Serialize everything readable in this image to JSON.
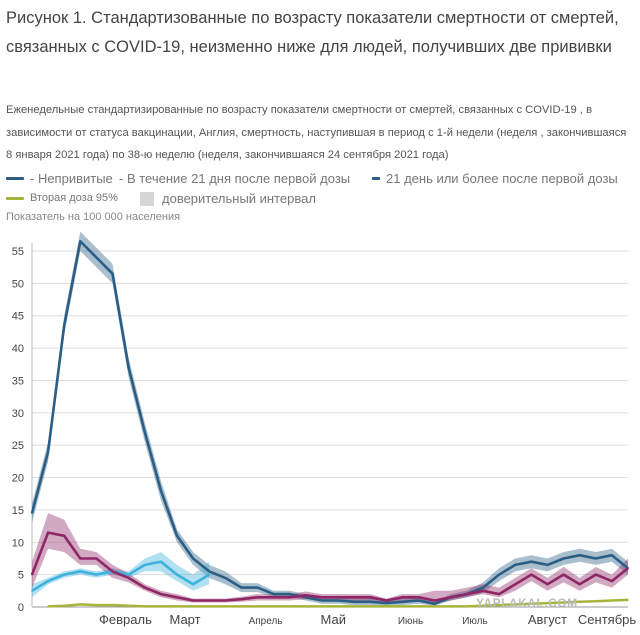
{
  "title": "Рисунок 1. Стандартизованные по возрасту показатели смертности от смертей, связанных с COVID-19, неизменно ниже для людей, получивших две прививки",
  "subtitle": "Еженедельные стандартизированные по возрасту показатели смертности от смертей, связанных с COVID-19 , в зависимости от статуса вакцинации, Англия, смертность, наступившая в период с 1-й недели (неделя , закончившаяся 8 января 2021 года) по 38-ю неделю (неделя, закончившаяся 24 сентября 2021 года)",
  "legend": {
    "unvaccinated": "- Непривитые",
    "within21": "- В течение 21 дня после первой дозы",
    "after21": "21 день или более после первой дозы",
    "second_dose": "Вторая доза 95%",
    "ci": "доверительный интервал"
  },
  "watermark": "YAPLAKAL.COM",
  "colors": {
    "unvaccinated": "#2b5e85",
    "within21": "#3fb1dd",
    "after21": "#8f2766",
    "second_dose": "#a6b53a",
    "ci": "#d6d6d6"
  },
  "chart_data": {
    "type": "line",
    "ylabel": "Показатель на 100 000 населения",
    "ylim": [
      0,
      58
    ],
    "yticks": [
      0,
      5,
      10,
      15,
      20,
      25,
      30,
      35,
      40,
      45,
      50,
      55
    ],
    "weeks": [
      1,
      38
    ],
    "month_labels": [
      {
        "label": "Февраль",
        "week": 6.8,
        "size": "big"
      },
      {
        "label": "Март",
        "week": 10.5,
        "size": "big"
      },
      {
        "label": "Апрель",
        "week": 15.5,
        "size": "small"
      },
      {
        "label": "Май",
        "week": 19.7,
        "size": "big"
      },
      {
        "label": "Июнь",
        "week": 24.5,
        "size": "small"
      },
      {
        "label": "Июль",
        "week": 28.5,
        "size": "small"
      },
      {
        "label": "Август",
        "week": 33.0,
        "size": "big"
      },
      {
        "label": "Сентябрь",
        "week": 36.7,
        "size": "big"
      }
    ],
    "series": [
      {
        "name": "- Непривитые",
        "key": "unvaccinated",
        "x": [
          1,
          2,
          3,
          4,
          5,
          6,
          7,
          8,
          9,
          10,
          11,
          12,
          13,
          14,
          15,
          16,
          17,
          18,
          19,
          20,
          21,
          22,
          23,
          24,
          25,
          26,
          27,
          28,
          29,
          30,
          31,
          32,
          33,
          34,
          35,
          36,
          37,
          38
        ],
        "values": [
          14.5,
          24,
          43.5,
          56.5,
          54,
          51.5,
          37,
          27,
          18,
          11,
          7.5,
          5.5,
          4.5,
          3,
          3,
          2,
          2,
          1.5,
          1,
          1,
          0.8,
          0.8,
          0.6,
          0.8,
          1,
          0.5,
          1.5,
          2,
          3,
          5,
          6.5,
          7,
          6.5,
          7.5,
          8,
          7.5,
          8,
          6
        ],
        "lower": [
          13,
          22.5,
          42,
          55,
          52.5,
          50,
          35.5,
          25.5,
          16.5,
          10,
          6.5,
          4.5,
          3.5,
          2.3,
          2.3,
          1.5,
          1.5,
          1,
          0.5,
          0.5,
          0.3,
          0.3,
          0.2,
          0.3,
          0.5,
          0.2,
          1,
          1.5,
          2.2,
          4,
          5.5,
          6,
          5.5,
          6.5,
          7,
          6.5,
          7,
          5
        ],
        "upper": [
          16,
          25.5,
          45,
          58,
          55.5,
          53,
          38.5,
          28.5,
          19.5,
          12,
          8.5,
          6.5,
          5.5,
          3.7,
          3.7,
          2.5,
          2.5,
          2,
          1.5,
          1.5,
          1.3,
          1.3,
          1,
          1.3,
          1.5,
          0.8,
          2,
          2.5,
          3.8,
          6,
          7.5,
          8,
          7.5,
          8.5,
          9,
          8.5,
          9,
          7
        ]
      },
      {
        "name": "- В течение 21 дня после первой дозы",
        "key": "within21",
        "x": [
          1,
          2,
          3,
          4,
          5,
          6,
          7,
          8,
          9,
          10,
          11,
          12
        ],
        "values": [
          2.5,
          4,
          5,
          5.5,
          5,
          5.5,
          5,
          6.5,
          7,
          5,
          3.5,
          5
        ],
        "lower": [
          1.5,
          3.5,
          4.5,
          5,
          4.5,
          5,
          4.5,
          5.5,
          5.5,
          4,
          2.5,
          3.5
        ],
        "upper": [
          3.5,
          4.5,
          5.5,
          6,
          5.5,
          6,
          5.5,
          7.5,
          8.5,
          6.5,
          5,
          7
        ]
      },
      {
        "name": "21 день или более после первой дозы",
        "key": "after21",
        "x": [
          1,
          2,
          3,
          4,
          5,
          6,
          7,
          8,
          9,
          10,
          11,
          12,
          13,
          14,
          15,
          16,
          17,
          18,
          19,
          20,
          21,
          22,
          23,
          24,
          25,
          26,
          27,
          28,
          29,
          30,
          31,
          32,
          33,
          34,
          35,
          36,
          37,
          38
        ],
        "values": [
          5,
          11.5,
          11,
          7.5,
          7.5,
          5.5,
          4.5,
          3,
          2,
          1.5,
          1,
          1,
          1,
          1.2,
          1.5,
          1.5,
          1.5,
          1.8,
          1.5,
          1.5,
          1.5,
          1.5,
          1,
          1.5,
          1.5,
          1,
          1.5,
          2,
          2.5,
          2,
          3.5,
          5,
          3.5,
          5,
          3.5,
          5,
          4,
          6
        ],
        "lower": [
          3,
          9,
          8.5,
          6.5,
          6.5,
          4.5,
          3.8,
          2.5,
          1.5,
          1,
          0.7,
          0.7,
          0.7,
          0.8,
          1,
          1,
          1,
          1.2,
          1,
          1,
          1,
          1,
          0.7,
          1,
          1,
          0.5,
          1,
          1.5,
          2,
          1.5,
          2.5,
          4,
          2.5,
          3.8,
          2.5,
          3.8,
          3,
          5
        ],
        "upper": [
          7,
          14.5,
          13.5,
          9,
          8.5,
          6.5,
          5.2,
          3.5,
          2.5,
          2,
          1.3,
          1.3,
          1.3,
          1.6,
          2,
          2,
          2,
          2.4,
          2,
          2,
          2,
          2,
          1.3,
          2,
          2,
          2.5,
          2.5,
          3,
          3.5,
          3,
          4.5,
          6,
          4.5,
          6.2,
          4.5,
          6.2,
          5,
          7.5
        ]
      },
      {
        "name": "Вторая доза 95%",
        "key": "second_dose",
        "x": [
          2,
          3,
          4,
          5,
          6,
          7,
          8,
          9,
          10,
          11,
          12,
          13,
          14,
          15,
          16,
          17,
          18,
          19,
          20,
          21,
          22,
          23,
          24,
          25,
          26,
          27,
          28,
          29,
          30,
          31,
          32,
          33,
          34,
          35,
          36,
          37,
          38
        ],
        "values": [
          0.1,
          0.2,
          0.4,
          0.3,
          0.3,
          0.2,
          0.1,
          0.1,
          0.1,
          0.1,
          0.1,
          0.1,
          0.1,
          0.1,
          0.1,
          0.1,
          0.1,
          0.1,
          0.1,
          0.1,
          0.1,
          0.1,
          0.1,
          0.1,
          0.1,
          0.1,
          0.1,
          0.2,
          0.3,
          0.4,
          0.5,
          0.6,
          0.7,
          0.8,
          0.9,
          1,
          1.1
        ]
      }
    ]
  }
}
